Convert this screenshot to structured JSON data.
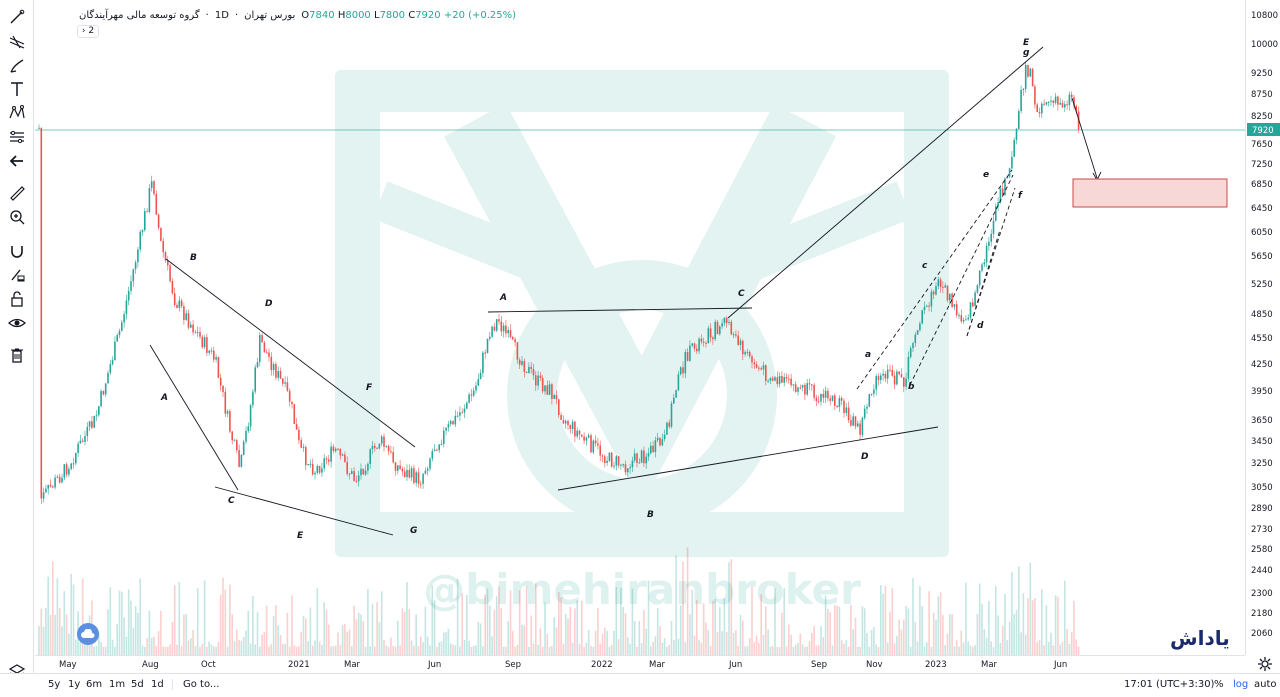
{
  "legend": {
    "symbol": "گروه توسعه مالی مهرآیندگان",
    "interval": "1D",
    "exchange": "بورس تهران",
    "open_label": "O",
    "open": "7840",
    "high_label": "H",
    "high": "8000",
    "low_label": "L",
    "low": "7800",
    "close_label": "C",
    "close": "7920",
    "change": "+20 (+0.25%)"
  },
  "collapse": {
    "count": "2"
  },
  "watermark": {
    "text": "@bimehiranbroker"
  },
  "brand": {
    "text": "یاداش"
  },
  "price_axis": {
    "labels": [
      "10800",
      "10000",
      "9250",
      "8750",
      "8250",
      "7650",
      "7250",
      "6850",
      "6450",
      "6050",
      "5650",
      "5250",
      "4850",
      "4550",
      "4250",
      "3950",
      "3650",
      "3450",
      "3250",
      "3050",
      "2890",
      "2730",
      "2580",
      "2440",
      "2300",
      "2180",
      "2060"
    ],
    "last_price": "7920",
    "last_price_color": "#26a69a"
  },
  "time_axis": {
    "labels": [
      "May",
      "Aug",
      "Oct",
      "2021",
      "Mar",
      "Jun",
      "Sep",
      "2022",
      "Mar",
      "Jun",
      "Sep",
      "Nov",
      "2023",
      "Mar",
      "Jun"
    ]
  },
  "timeframes": [
    "5y",
    "1y",
    "6m",
    "1m",
    "5d",
    "1d"
  ],
  "goto_label": "Go to...",
  "bottom_right": {
    "clock": "17:01 (UTC+3:30)",
    "percent": "%",
    "log": "log",
    "auto": "auto"
  },
  "wave_labels": [
    "A",
    "B",
    "C",
    "D",
    "E",
    "F",
    "G",
    "A",
    "B",
    "C",
    "D",
    "E",
    "g",
    "a",
    "b",
    "c",
    "d",
    "e",
    "f"
  ],
  "colors": {
    "up": "#26a69a",
    "down": "#ef5350",
    "accent": "#2962ff"
  }
}
